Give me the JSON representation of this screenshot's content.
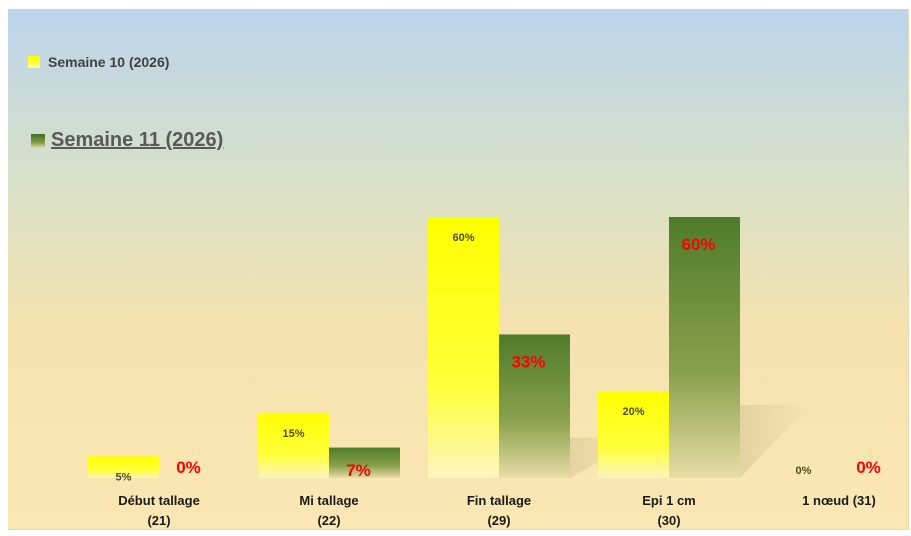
{
  "chart_data": {
    "type": "bar",
    "categories": [
      [
        "Début tallage",
        "(21)"
      ],
      [
        "Mi tallage",
        "(22)"
      ],
      [
        "Fin tallage",
        "(29)"
      ],
      [
        "Epi 1 cm",
        "(30)"
      ],
      [
        "1 nœud (31)"
      ]
    ],
    "series": [
      {
        "name": "Semaine 10 (2026)",
        "values": [
          5,
          15,
          60,
          20,
          0
        ],
        "labels": [
          "5%",
          "15%",
          "60%",
          "20%",
          "0%"
        ],
        "color": "#ffff00",
        "label_color": "#4f4f1a"
      },
      {
        "name": "Semaine 11 (2026)",
        "values": [
          0,
          7,
          33,
          60,
          0
        ],
        "labels": [
          "0%",
          "7%",
          "33%",
          "60%",
          "0%"
        ],
        "color": "#5f8a32",
        "label_color": "#ff0000"
      }
    ],
    "ylim": [
      0,
      60
    ],
    "grid": false,
    "legend_position": "top-left",
    "title": "",
    "xlabel": "",
    "ylabel": ""
  }
}
